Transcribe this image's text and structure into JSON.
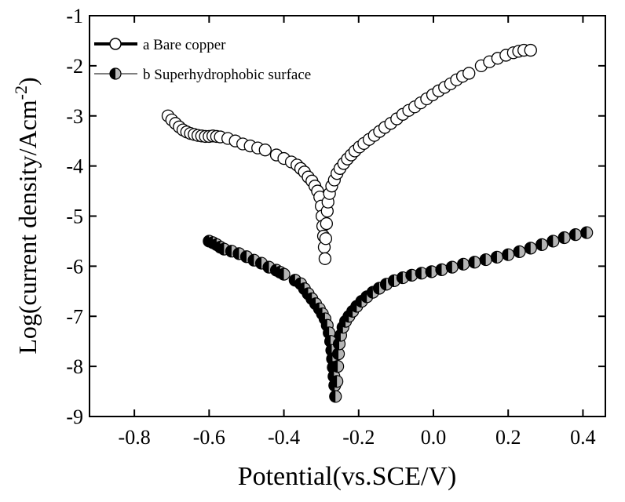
{
  "chart_data": {
    "type": "scatter",
    "title": "",
    "xlabel": "Potential(vs.SCE/V)",
    "ylabel": "Log(current density/Acm",
    "ylabel_sup": "-2",
    "ylabel_close": ")",
    "xlim": [
      -0.92,
      0.46
    ],
    "ylim": [
      -9,
      -1
    ],
    "xticks": [
      -0.8,
      -0.6,
      -0.4,
      -0.2,
      0.0,
      0.2,
      0.4
    ],
    "xtick_labels": [
      "-0.8",
      "-0.6",
      "-0.4",
      "-0.2",
      "0.0",
      "0.2",
      "0.4"
    ],
    "yticks": [
      -9,
      -8,
      -7,
      -6,
      -5,
      -4,
      -3,
      -2,
      -1
    ],
    "ytick_labels": [
      "-9",
      "-8",
      "-7",
      "-6",
      "-5",
      "-4",
      "-3",
      "-2",
      "-1"
    ],
    "grid": false,
    "legend_position": "top-left",
    "series": [
      {
        "name": "a  Bare copper",
        "marker": "open-circle",
        "points": [
          [
            -0.71,
            -3.0
          ],
          [
            -0.7,
            -3.08
          ],
          [
            -0.69,
            -3.15
          ],
          [
            -0.68,
            -3.22
          ],
          [
            -0.67,
            -3.28
          ],
          [
            -0.66,
            -3.32
          ],
          [
            -0.65,
            -3.35
          ],
          [
            -0.64,
            -3.37
          ],
          [
            -0.63,
            -3.39
          ],
          [
            -0.62,
            -3.4
          ],
          [
            -0.61,
            -3.41
          ],
          [
            -0.6,
            -3.41
          ],
          [
            -0.59,
            -3.4
          ],
          [
            -0.58,
            -3.41
          ],
          [
            -0.57,
            -3.42
          ],
          [
            -0.55,
            -3.45
          ],
          [
            -0.53,
            -3.5
          ],
          [
            -0.51,
            -3.56
          ],
          [
            -0.49,
            -3.6
          ],
          [
            -0.47,
            -3.64
          ],
          [
            -0.45,
            -3.68
          ],
          [
            -0.42,
            -3.78
          ],
          [
            -0.4,
            -3.85
          ],
          [
            -0.38,
            -3.92
          ],
          [
            -0.365,
            -3.98
          ],
          [
            -0.355,
            -4.05
          ],
          [
            -0.345,
            -4.12
          ],
          [
            -0.335,
            -4.22
          ],
          [
            -0.325,
            -4.3
          ],
          [
            -0.317,
            -4.4
          ],
          [
            -0.31,
            -4.5
          ],
          [
            -0.304,
            -4.62
          ],
          [
            -0.3,
            -4.8
          ],
          [
            -0.298,
            -5.0
          ],
          [
            -0.296,
            -5.2
          ],
          [
            -0.294,
            -5.4
          ],
          [
            -0.292,
            -5.62
          ],
          [
            -0.29,
            -5.85
          ],
          [
            -0.288,
            -5.45
          ],
          [
            -0.286,
            -5.15
          ],
          [
            -0.284,
            -4.9
          ],
          [
            -0.282,
            -4.72
          ],
          [
            -0.278,
            -4.55
          ],
          [
            -0.272,
            -4.4
          ],
          [
            -0.265,
            -4.28
          ],
          [
            -0.258,
            -4.15
          ],
          [
            -0.25,
            -4.05
          ],
          [
            -0.24,
            -3.95
          ],
          [
            -0.23,
            -3.86
          ],
          [
            -0.22,
            -3.78
          ],
          [
            -0.21,
            -3.7
          ],
          [
            -0.198,
            -3.62
          ],
          [
            -0.186,
            -3.55
          ],
          [
            -0.172,
            -3.47
          ],
          [
            -0.158,
            -3.39
          ],
          [
            -0.144,
            -3.31
          ],
          [
            -0.13,
            -3.23
          ],
          [
            -0.114,
            -3.15
          ],
          [
            -0.098,
            -3.06
          ],
          [
            -0.082,
            -2.97
          ],
          [
            -0.066,
            -2.89
          ],
          [
            -0.05,
            -2.82
          ],
          [
            -0.034,
            -2.74
          ],
          [
            -0.018,
            -2.66
          ],
          [
            -0.002,
            -2.58
          ],
          [
            0.014,
            -2.5
          ],
          [
            0.03,
            -2.43
          ],
          [
            0.046,
            -2.36
          ],
          [
            0.062,
            -2.28
          ],
          [
            0.078,
            -2.21
          ],
          [
            0.095,
            -2.15
          ],
          [
            0.128,
            -2.0
          ],
          [
            0.15,
            -1.92
          ],
          [
            0.172,
            -1.85
          ],
          [
            0.194,
            -1.79
          ],
          [
            0.214,
            -1.74
          ],
          [
            0.228,
            -1.71
          ],
          [
            0.242,
            -1.69
          ],
          [
            0.26,
            -1.69
          ]
        ]
      },
      {
        "name": "b  Superhydrophobic surface",
        "marker": "half-filled-circle",
        "points": [
          [
            -0.6,
            -5.5
          ],
          [
            -0.59,
            -5.53
          ],
          [
            -0.58,
            -5.57
          ],
          [
            -0.57,
            -5.62
          ],
          [
            -0.56,
            -5.66
          ],
          [
            -0.54,
            -5.7
          ],
          [
            -0.52,
            -5.75
          ],
          [
            -0.5,
            -5.81
          ],
          [
            -0.48,
            -5.88
          ],
          [
            -0.46,
            -5.94
          ],
          [
            -0.44,
            -6.02
          ],
          [
            -0.42,
            -6.08
          ],
          [
            -0.41,
            -6.12
          ],
          [
            -0.4,
            -6.16
          ],
          [
            -0.37,
            -6.28
          ],
          [
            -0.355,
            -6.35
          ],
          [
            -0.345,
            -6.45
          ],
          [
            -0.335,
            -6.55
          ],
          [
            -0.325,
            -6.65
          ],
          [
            -0.315,
            -6.75
          ],
          [
            -0.305,
            -6.85
          ],
          [
            -0.297,
            -6.95
          ],
          [
            -0.29,
            -7.05
          ],
          [
            -0.284,
            -7.18
          ],
          [
            -0.279,
            -7.33
          ],
          [
            -0.275,
            -7.5
          ],
          [
            -0.272,
            -7.68
          ],
          [
            -0.27,
            -7.85
          ],
          [
            -0.268,
            -8.02
          ],
          [
            -0.266,
            -8.2
          ],
          [
            -0.264,
            -8.38
          ],
          [
            -0.262,
            -8.6
          ],
          [
            -0.258,
            -8.3
          ],
          [
            -0.256,
            -8.0
          ],
          [
            -0.254,
            -7.75
          ],
          [
            -0.252,
            -7.55
          ],
          [
            -0.248,
            -7.38
          ],
          [
            -0.242,
            -7.22
          ],
          [
            -0.235,
            -7.1
          ],
          [
            -0.226,
            -7.0
          ],
          [
            -0.216,
            -6.9
          ],
          [
            -0.205,
            -6.8
          ],
          [
            -0.192,
            -6.7
          ],
          [
            -0.178,
            -6.61
          ],
          [
            -0.162,
            -6.52
          ],
          [
            -0.145,
            -6.44
          ],
          [
            -0.126,
            -6.36
          ],
          [
            -0.105,
            -6.29
          ],
          [
            -0.082,
            -6.23
          ],
          [
            -0.058,
            -6.18
          ],
          [
            -0.032,
            -6.14
          ],
          [
            -0.005,
            -6.11
          ],
          [
            0.022,
            -6.07
          ],
          [
            0.05,
            -6.02
          ],
          [
            0.08,
            -5.96
          ],
          [
            0.11,
            -5.92
          ],
          [
            0.14,
            -5.87
          ],
          [
            0.17,
            -5.82
          ],
          [
            0.2,
            -5.77
          ],
          [
            0.23,
            -5.71
          ],
          [
            0.26,
            -5.64
          ],
          [
            0.29,
            -5.57
          ],
          [
            0.32,
            -5.5
          ],
          [
            0.35,
            -5.43
          ],
          [
            0.38,
            -5.37
          ],
          [
            0.41,
            -5.33
          ]
        ]
      }
    ]
  }
}
